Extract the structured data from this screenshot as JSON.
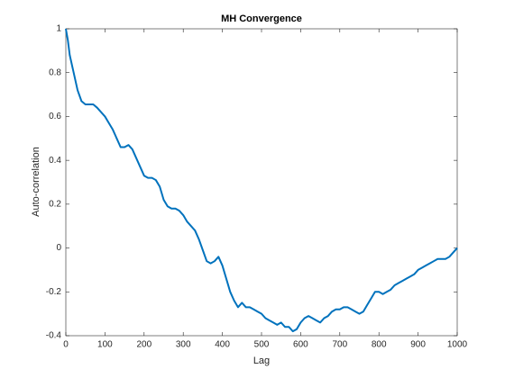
{
  "chart_data": {
    "type": "line",
    "title": "MH Convergence",
    "xlabel": "Lag",
    "ylabel": "Auto-correlation",
    "x": [
      0,
      5,
      10,
      20,
      30,
      40,
      50,
      60,
      70,
      80,
      90,
      100,
      110,
      120,
      130,
      140,
      150,
      160,
      170,
      180,
      190,
      200,
      210,
      220,
      230,
      240,
      250,
      260,
      270,
      280,
      290,
      300,
      310,
      320,
      330,
      340,
      350,
      360,
      370,
      380,
      390,
      400,
      410,
      420,
      430,
      440,
      450,
      460,
      470,
      480,
      490,
      500,
      510,
      520,
      530,
      540,
      550,
      560,
      570,
      580,
      590,
      600,
      610,
      620,
      630,
      640,
      650,
      660,
      670,
      680,
      690,
      700,
      710,
      720,
      730,
      740,
      750,
      760,
      770,
      780,
      790,
      800,
      810,
      820,
      830,
      840,
      850,
      860,
      870,
      880,
      890,
      900,
      910,
      920,
      930,
      940,
      950,
      960,
      970,
      980,
      990,
      1000
    ],
    "series": [
      {
        "name": "Auto-correlation",
        "color": "#0072bd",
        "values": [
          1,
          0.95,
          0.88,
          0.8,
          0.72,
          0.67,
          0.655,
          0.655,
          0.655,
          0.64,
          0.62,
          0.6,
          0.57,
          0.54,
          0.5,
          0.46,
          0.46,
          0.47,
          0.45,
          0.41,
          0.37,
          0.33,
          0.32,
          0.32,
          0.31,
          0.28,
          0.22,
          0.19,
          0.18,
          0.18,
          0.17,
          0.15,
          0.12,
          0.1,
          0.08,
          0.04,
          -0.01,
          -0.06,
          -0.07,
          -0.06,
          -0.04,
          -0.08,
          -0.14,
          -0.2,
          -0.24,
          -0.27,
          -0.25,
          -0.27,
          -0.27,
          -0.28,
          -0.29,
          -0.3,
          -0.32,
          -0.33,
          -0.34,
          -0.35,
          -0.34,
          -0.36,
          -0.36,
          -0.38,
          -0.37,
          -0.34,
          -0.32,
          -0.31,
          -0.32,
          -0.33,
          -0.34,
          -0.32,
          -0.31,
          -0.29,
          -0.28,
          -0.28,
          -0.27,
          -0.27,
          -0.28,
          -0.29,
          -0.3,
          -0.29,
          -0.26,
          -0.23,
          -0.2,
          -0.2,
          -0.21,
          -0.2,
          -0.19,
          -0.17,
          -0.16,
          -0.15,
          -0.14,
          -0.13,
          -0.12,
          -0.1,
          -0.09,
          -0.08,
          -0.07,
          -0.06,
          -0.05,
          -0.05,
          -0.05,
          -0.04,
          -0.02,
          0
        ]
      }
    ],
    "xlim": [
      0,
      1000
    ],
    "xticks": [
      0,
      100,
      200,
      300,
      400,
      500,
      600,
      700,
      800,
      900,
      1000
    ],
    "ylim": [
      -0.4,
      1
    ],
    "yticks": [
      -0.4,
      -0.2,
      0,
      0.2,
      0.4,
      0.6,
      0.8,
      1
    ],
    "grid": false
  }
}
